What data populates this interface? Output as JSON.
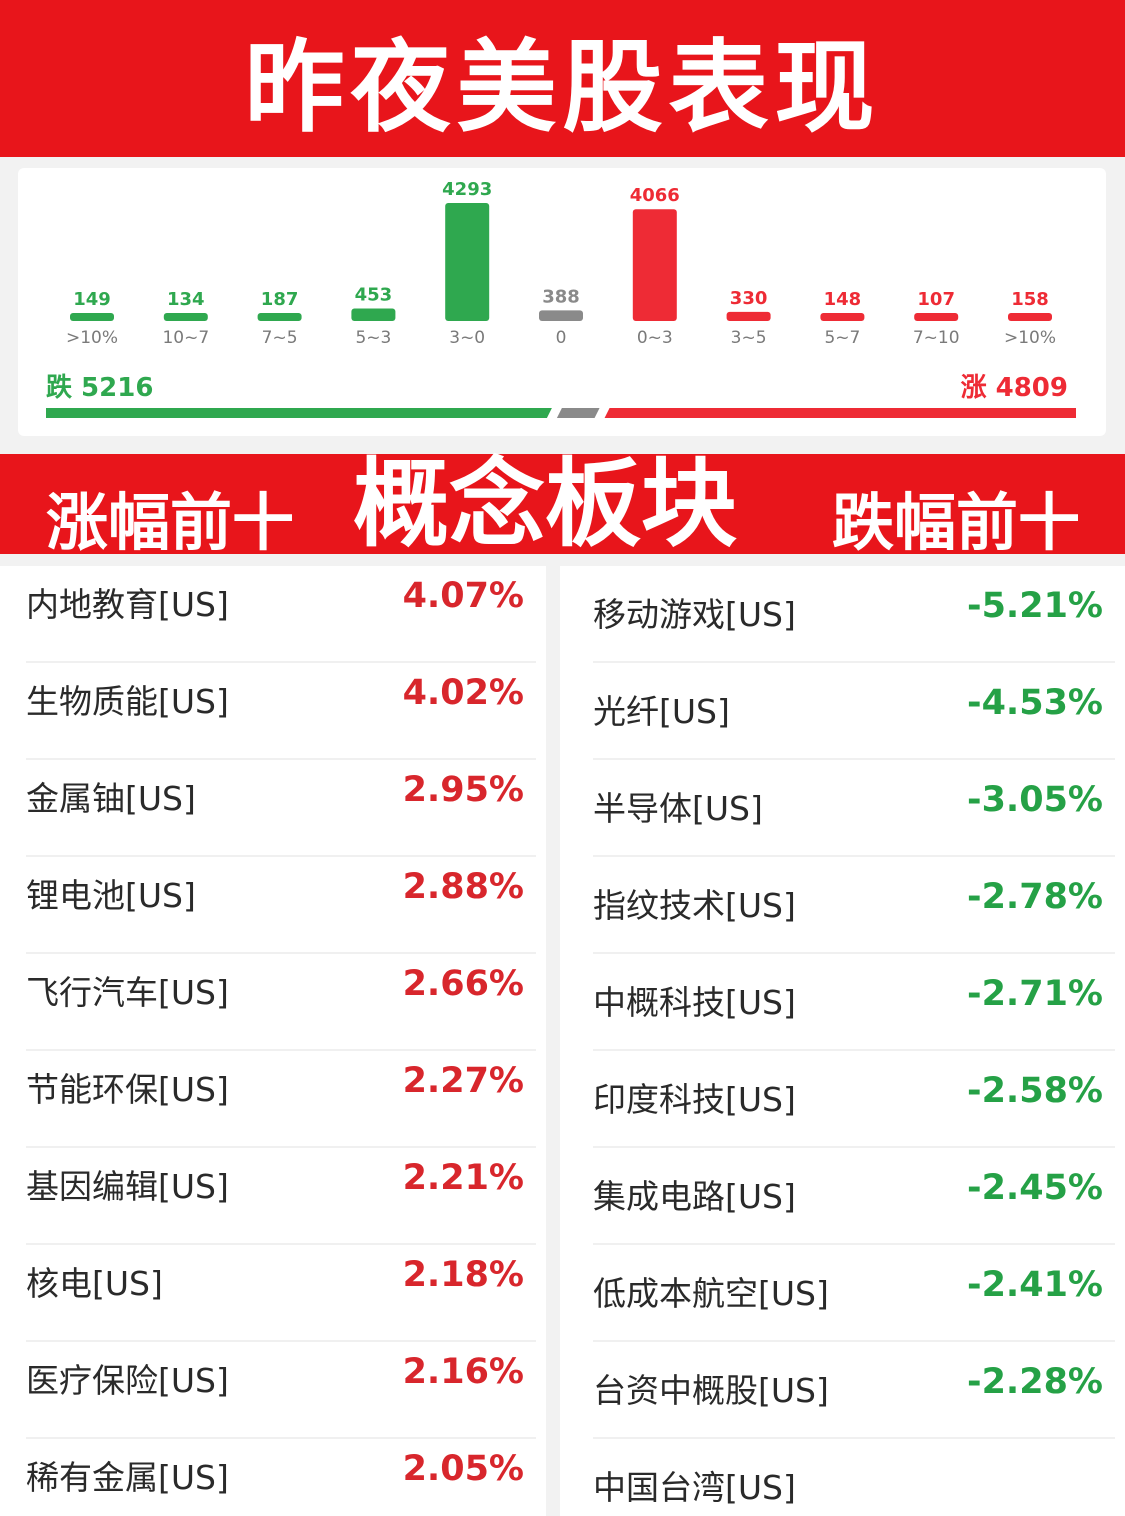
{
  "header": {
    "title": "昨夜美股表现"
  },
  "chart_data": {
    "type": "bar",
    "categories": [
      ">10%",
      "10~7",
      "7~5",
      "5~3",
      "3~0",
      "0",
      "0~3",
      "3~5",
      "5~7",
      "7~10",
      ">10%"
    ],
    "values": [
      149,
      134,
      187,
      453,
      4293,
      388,
      4066,
      330,
      148,
      107,
      158
    ],
    "bar_colors": [
      "#2fa84f",
      "#2fa84f",
      "#2fa84f",
      "#2fa84f",
      "#2fa84f",
      "#8a8a8a",
      "#ee2b35",
      "#ee2b35",
      "#ee2b35",
      "#ee2b35",
      "#ee2b35"
    ],
    "fall_label": "跌",
    "fall_total": 5216,
    "rise_label": "涨",
    "rise_total": 4809,
    "flat_total": 388
  },
  "section": {
    "left_label": "涨幅前十",
    "center_label": "概念板块",
    "right_label": "跌幅前十"
  },
  "gainers": [
    {
      "name": "内地教育[US]",
      "pct": "4.07%"
    },
    {
      "name": "生物质能[US]",
      "pct": "4.02%"
    },
    {
      "name": "金属铀[US]",
      "pct": "2.95%"
    },
    {
      "name": "锂电池[US]",
      "pct": "2.88%"
    },
    {
      "name": "飞行汽车[US]",
      "pct": "2.66%"
    },
    {
      "name": "节能环保[US]",
      "pct": "2.27%"
    },
    {
      "name": "基因编辑[US]",
      "pct": "2.21%"
    },
    {
      "name": "核电[US]",
      "pct": "2.18%"
    },
    {
      "name": "医疗保险[US]",
      "pct": "2.16%"
    },
    {
      "name": "稀有金属[US]",
      "pct": "2.05%"
    }
  ],
  "losers": [
    {
      "name": "移动游戏[US]",
      "pct": "-5.21%"
    },
    {
      "name": "光纤[US]",
      "pct": "-4.53%"
    },
    {
      "name": "半导体[US]",
      "pct": "-3.05%"
    },
    {
      "name": "指纹技术[US]",
      "pct": "-2.78%"
    },
    {
      "name": "中概科技[US]",
      "pct": "-2.71%"
    },
    {
      "name": "印度科技[US]",
      "pct": "-2.58%"
    },
    {
      "name": "集成电路[US]",
      "pct": "-2.45%"
    },
    {
      "name": "低成本航空[US]",
      "pct": "-2.41%"
    },
    {
      "name": "台资中概股[US]",
      "pct": "-2.28%"
    },
    {
      "name": "中国台湾[US]",
      "pct": ""
    }
  ],
  "colors": {
    "banner_red": "#e8151b",
    "rise_red": "#ee2b35",
    "fall_green": "#2fa84f",
    "flat_gray": "#8a8a8a",
    "gain_text": "#d8262c",
    "loss_text": "#25a146"
  }
}
